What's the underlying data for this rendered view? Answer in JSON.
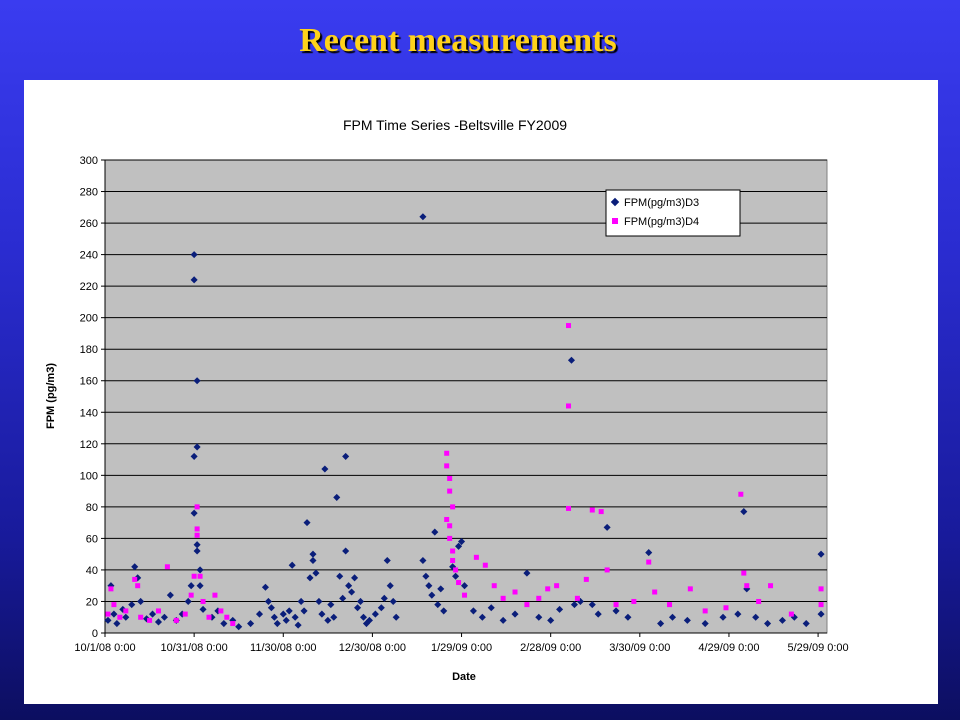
{
  "slide": {
    "title": "Recent measurements"
  },
  "colors": {
    "background_top": "#3a3cf0",
    "background_bottom": "#0c0e60",
    "title": "#ffd21a",
    "plot_area": "#c0c0c0",
    "series_d3": "#0a1e7a",
    "series_d4": "#ff00ff"
  },
  "chart_data": {
    "type": "scatter",
    "title": "FPM Time Series -Beltsville FY2009",
    "xlabel": "Date",
    "ylabel": "FPM (pg/m3)",
    "ylim": [
      0,
      300
    ],
    "yticks": [
      0,
      20,
      40,
      60,
      80,
      100,
      120,
      140,
      160,
      180,
      200,
      220,
      240,
      260,
      280,
      300
    ],
    "xlim": [
      "2008-10-01",
      "2009-06-01"
    ],
    "xticks": [
      {
        "date": "2008-10-01",
        "label": "10/1/08 0:00"
      },
      {
        "date": "2008-10-31",
        "label": "10/31/08 0:00"
      },
      {
        "date": "2008-11-30",
        "label": "11/30/08 0:00"
      },
      {
        "date": "2008-12-30",
        "label": "12/30/08 0:00"
      },
      {
        "date": "2009-01-29",
        "label": "1/29/09 0:00"
      },
      {
        "date": "2009-02-28",
        "label": "2/28/09 0:00"
      },
      {
        "date": "2009-03-30",
        "label": "3/30/09 0:00"
      },
      {
        "date": "2009-04-29",
        "label": "4/29/09 0:00"
      },
      {
        "date": "2009-05-29",
        "label": "5/29/09 0:00"
      }
    ],
    "grid": true,
    "legend_position": "top-right",
    "series": [
      {
        "name": "FPM(pg/m3)D3",
        "marker": "diamond",
        "color": "#0a1e7a",
        "points": [
          [
            "2008-10-02",
            8
          ],
          [
            "2008-10-03",
            30
          ],
          [
            "2008-10-04",
            12
          ],
          [
            "2008-10-05",
            6
          ],
          [
            "2008-10-07",
            15
          ],
          [
            "2008-10-08",
            10
          ],
          [
            "2008-10-10",
            18
          ],
          [
            "2008-10-11",
            42
          ],
          [
            "2008-10-12",
            35
          ],
          [
            "2008-10-13",
            20
          ],
          [
            "2008-10-15",
            9
          ],
          [
            "2008-10-17",
            12
          ],
          [
            "2008-10-19",
            7
          ],
          [
            "2008-10-21",
            10
          ],
          [
            "2008-10-23",
            24
          ],
          [
            "2008-10-25",
            8
          ],
          [
            "2008-10-27",
            12
          ],
          [
            "2008-10-29",
            20
          ],
          [
            "2008-10-30",
            30
          ],
          [
            "2008-10-31",
            240
          ],
          [
            "2008-10-31",
            224
          ],
          [
            "2008-11-01",
            160
          ],
          [
            "2008-11-01",
            118
          ],
          [
            "2008-10-31",
            112
          ],
          [
            "2008-10-31",
            76
          ],
          [
            "2008-11-01",
            56
          ],
          [
            "2008-11-01",
            52
          ],
          [
            "2008-11-02",
            40
          ],
          [
            "2008-11-02",
            30
          ],
          [
            "2008-11-03",
            15
          ],
          [
            "2008-11-06",
            10
          ],
          [
            "2008-11-08",
            14
          ],
          [
            "2008-11-10",
            6
          ],
          [
            "2008-11-13",
            8
          ],
          [
            "2008-11-15",
            4
          ],
          [
            "2008-11-19",
            6
          ],
          [
            "2008-11-22",
            12
          ],
          [
            "2008-11-24",
            29
          ],
          [
            "2008-11-25",
            20
          ],
          [
            "2008-11-26",
            16
          ],
          [
            "2008-11-27",
            10
          ],
          [
            "2008-11-28",
            6
          ],
          [
            "2008-11-30",
            12
          ],
          [
            "2008-12-01",
            8
          ],
          [
            "2008-12-02",
            14
          ],
          [
            "2008-12-03",
            43
          ],
          [
            "2008-12-04",
            10
          ],
          [
            "2008-12-05",
            5
          ],
          [
            "2008-12-06",
            20
          ],
          [
            "2008-12-07",
            14
          ],
          [
            "2008-12-08",
            70
          ],
          [
            "2008-12-09",
            35
          ],
          [
            "2008-12-10",
            46
          ],
          [
            "2008-12-10",
            50
          ],
          [
            "2008-12-11",
            38
          ],
          [
            "2008-12-12",
            20
          ],
          [
            "2008-12-13",
            12
          ],
          [
            "2008-12-14",
            104
          ],
          [
            "2008-12-15",
            8
          ],
          [
            "2008-12-16",
            18
          ],
          [
            "2008-12-17",
            10
          ],
          [
            "2008-12-18",
            86
          ],
          [
            "2008-12-19",
            36
          ],
          [
            "2008-12-20",
            22
          ],
          [
            "2008-12-21",
            52
          ],
          [
            "2008-12-21",
            112
          ],
          [
            "2008-12-22",
            30
          ],
          [
            "2008-12-23",
            26
          ],
          [
            "2008-12-24",
            35
          ],
          [
            "2008-12-25",
            16
          ],
          [
            "2008-12-26",
            20
          ],
          [
            "2008-12-27",
            10
          ],
          [
            "2008-12-28",
            6
          ],
          [
            "2008-12-29",
            8
          ],
          [
            "2008-12-31",
            12
          ],
          [
            "2009-01-02",
            16
          ],
          [
            "2009-01-03",
            22
          ],
          [
            "2009-01-04",
            46
          ],
          [
            "2009-01-05",
            30
          ],
          [
            "2009-01-06",
            20
          ],
          [
            "2009-01-07",
            10
          ],
          [
            "2009-01-16",
            264
          ],
          [
            "2009-01-16",
            46
          ],
          [
            "2009-01-17",
            36
          ],
          [
            "2009-01-18",
            30
          ],
          [
            "2009-01-19",
            24
          ],
          [
            "2009-01-20",
            64
          ],
          [
            "2009-01-21",
            18
          ],
          [
            "2009-01-22",
            28
          ],
          [
            "2009-01-23",
            14
          ],
          [
            "2009-01-26",
            42
          ],
          [
            "2009-01-27",
            36
          ],
          [
            "2009-01-28",
            55
          ],
          [
            "2009-01-29",
            58
          ],
          [
            "2009-01-30",
            30
          ],
          [
            "2009-02-02",
            14
          ],
          [
            "2009-02-05",
            10
          ],
          [
            "2009-02-08",
            16
          ],
          [
            "2009-02-12",
            8
          ],
          [
            "2009-02-16",
            12
          ],
          [
            "2009-02-20",
            38
          ],
          [
            "2009-02-24",
            10
          ],
          [
            "2009-02-28",
            8
          ],
          [
            "2009-03-03",
            15
          ],
          [
            "2009-03-07",
            173
          ],
          [
            "2009-03-08",
            18
          ],
          [
            "2009-03-10",
            20
          ],
          [
            "2009-03-14",
            18
          ],
          [
            "2009-03-16",
            12
          ],
          [
            "2009-03-19",
            67
          ],
          [
            "2009-03-22",
            14
          ],
          [
            "2009-03-26",
            10
          ],
          [
            "2009-04-02",
            51
          ],
          [
            "2009-04-06",
            6
          ],
          [
            "2009-04-10",
            10
          ],
          [
            "2009-04-15",
            8
          ],
          [
            "2009-04-21",
            6
          ],
          [
            "2009-04-27",
            10
          ],
          [
            "2009-05-02",
            12
          ],
          [
            "2009-05-04",
            77
          ],
          [
            "2009-05-05",
            28
          ],
          [
            "2009-05-08",
            10
          ],
          [
            "2009-05-12",
            6
          ],
          [
            "2009-05-17",
            8
          ],
          [
            "2009-05-21",
            10
          ],
          [
            "2009-05-25",
            6
          ],
          [
            "2009-05-30",
            50
          ],
          [
            "2009-05-30",
            12
          ]
        ]
      },
      {
        "name": "FPM(pg/m3)D4",
        "marker": "square",
        "color": "#ff00ff",
        "points": [
          [
            "2008-10-02",
            12
          ],
          [
            "2008-10-03",
            28
          ],
          [
            "2008-10-04",
            18
          ],
          [
            "2008-10-06",
            10
          ],
          [
            "2008-10-08",
            14
          ],
          [
            "2008-10-11",
            34
          ],
          [
            "2008-10-12",
            30
          ],
          [
            "2008-10-13",
            10
          ],
          [
            "2008-10-16",
            8
          ],
          [
            "2008-10-19",
            14
          ],
          [
            "2008-10-22",
            42
          ],
          [
            "2008-10-25",
            8
          ],
          [
            "2008-10-28",
            12
          ],
          [
            "2008-10-30",
            24
          ],
          [
            "2008-10-31",
            36
          ],
          [
            "2008-11-01",
            80
          ],
          [
            "2008-11-01",
            66
          ],
          [
            "2008-11-01",
            62
          ],
          [
            "2008-11-02",
            36
          ],
          [
            "2008-11-03",
            20
          ],
          [
            "2008-11-05",
            10
          ],
          [
            "2008-11-07",
            24
          ],
          [
            "2008-11-09",
            14
          ],
          [
            "2008-11-11",
            10
          ],
          [
            "2008-11-13",
            6
          ],
          [
            "2009-01-24",
            114
          ],
          [
            "2009-01-24",
            106
          ],
          [
            "2009-01-25",
            98
          ],
          [
            "2009-01-25",
            90
          ],
          [
            "2009-01-26",
            80
          ],
          [
            "2009-01-24",
            72
          ],
          [
            "2009-01-25",
            68
          ],
          [
            "2009-01-25",
            60
          ],
          [
            "2009-01-26",
            52
          ],
          [
            "2009-01-26",
            46
          ],
          [
            "2009-01-27",
            40
          ],
          [
            "2009-01-28",
            32
          ],
          [
            "2009-01-30",
            24
          ],
          [
            "2009-02-03",
            48
          ],
          [
            "2009-02-06",
            43
          ],
          [
            "2009-02-09",
            30
          ],
          [
            "2009-02-12",
            22
          ],
          [
            "2009-02-16",
            26
          ],
          [
            "2009-02-20",
            18
          ],
          [
            "2009-02-24",
            22
          ],
          [
            "2009-02-27",
            28
          ],
          [
            "2009-03-02",
            30
          ],
          [
            "2009-03-06",
            195
          ],
          [
            "2009-03-06",
            144
          ],
          [
            "2009-03-06",
            79
          ],
          [
            "2009-03-09",
            22
          ],
          [
            "2009-03-12",
            34
          ],
          [
            "2009-03-14",
            78
          ],
          [
            "2009-03-17",
            77
          ],
          [
            "2009-03-19",
            40
          ],
          [
            "2009-03-22",
            18
          ],
          [
            "2009-03-28",
            20
          ],
          [
            "2009-04-02",
            45
          ],
          [
            "2009-04-04",
            26
          ],
          [
            "2009-04-09",
            18
          ],
          [
            "2009-04-16",
            28
          ],
          [
            "2009-04-21",
            14
          ],
          [
            "2009-04-28",
            16
          ],
          [
            "2009-05-03",
            88
          ],
          [
            "2009-05-04",
            38
          ],
          [
            "2009-05-05",
            30
          ],
          [
            "2009-05-09",
            20
          ],
          [
            "2009-05-13",
            30
          ],
          [
            "2009-05-20",
            12
          ],
          [
            "2009-05-30",
            28
          ],
          [
            "2009-05-30",
            18
          ]
        ]
      }
    ]
  }
}
